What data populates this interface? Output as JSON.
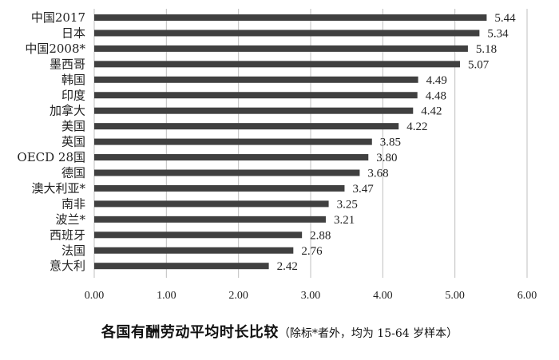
{
  "chart_data": {
    "type": "bar",
    "orientation": "horizontal",
    "categories": [
      "中国2017",
      "日本",
      "中国2008*",
      "墨西哥",
      "韩国",
      "印度",
      "加拿大",
      "美国",
      "英国",
      "OECD 28国",
      "德国",
      "澳大利亚*",
      "南非",
      "波兰*",
      "西班牙",
      "法国",
      "意大利"
    ],
    "values": [
      5.44,
      5.34,
      5.18,
      5.07,
      4.49,
      4.48,
      4.42,
      4.22,
      3.85,
      3.8,
      3.68,
      3.47,
      3.25,
      3.21,
      2.88,
      2.76,
      2.42
    ],
    "value_labels": [
      "5.44",
      "5.34",
      "5.18",
      "5.07",
      "4.49",
      "4.48",
      "4.42",
      "4.22",
      "3.85",
      "3.80",
      "3.68",
      "3.47",
      "3.25",
      "3.21",
      "2.88",
      "2.76",
      "2.42"
    ],
    "xlim": [
      0,
      6
    ],
    "xticks": [
      "0.00",
      "1.00",
      "2.00",
      "3.00",
      "4.00",
      "5.00",
      "6.00"
    ],
    "grid": "vertical",
    "bar_color": "#404040",
    "grid_color": "#bfbfbf"
  },
  "caption": {
    "title": "各国有酬劳动平均时长比较",
    "note": "（除标*者外，均为 15-64 岁样本）"
  }
}
